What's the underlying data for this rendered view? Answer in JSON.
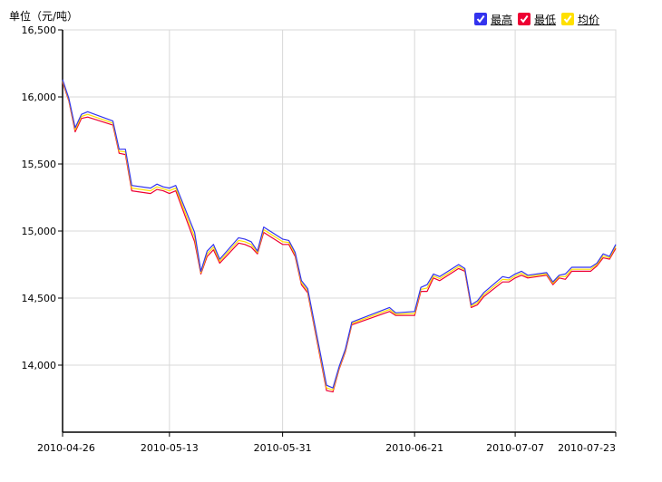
{
  "unit_label": "单位（元/吨）",
  "legend": [
    {
      "label": "最高",
      "color": "#3333ee",
      "checked": true
    },
    {
      "label": "最低",
      "color": "#ee0033",
      "checked": true
    },
    {
      "label": "均价",
      "color": "#ffe000",
      "checked": true
    }
  ],
  "chart_data": {
    "type": "line",
    "ylim": [
      13500,
      16500
    ],
    "yticks": [
      14000,
      14500,
      15000,
      15500,
      16000,
      16500
    ],
    "ytick_labels": [
      "14,000",
      "14,500",
      "15,000",
      "15,500",
      "16,000",
      "16,500"
    ],
    "xlim": [
      "2010-04-26",
      "2010-07-23"
    ],
    "xticks": [
      "2010-04-26",
      "2010-05-13",
      "2010-05-31",
      "2010-06-21",
      "2010-07-07",
      "2010-07-23"
    ],
    "grid": true,
    "dates": [
      "2010-04-26",
      "2010-04-27",
      "2010-04-28",
      "2010-04-29",
      "2010-04-30",
      "2010-05-04",
      "2010-05-05",
      "2010-05-06",
      "2010-05-07",
      "2010-05-10",
      "2010-05-11",
      "2010-05-12",
      "2010-05-13",
      "2010-05-14",
      "2010-05-17",
      "2010-05-18",
      "2010-05-19",
      "2010-05-20",
      "2010-05-21",
      "2010-05-24",
      "2010-05-25",
      "2010-05-26",
      "2010-05-27",
      "2010-05-28",
      "2010-05-31",
      "2010-06-01",
      "2010-06-02",
      "2010-06-03",
      "2010-06-04",
      "2010-06-07",
      "2010-06-08",
      "2010-06-09",
      "2010-06-10",
      "2010-06-11",
      "2010-06-17",
      "2010-06-18",
      "2010-06-21",
      "2010-06-22",
      "2010-06-23",
      "2010-06-24",
      "2010-06-25",
      "2010-06-28",
      "2010-06-29",
      "2010-06-30",
      "2010-07-01",
      "2010-07-02",
      "2010-07-05",
      "2010-07-06",
      "2010-07-07",
      "2010-07-08",
      "2010-07-09",
      "2010-07-12",
      "2010-07-13",
      "2010-07-14",
      "2010-07-15",
      "2010-07-16",
      "2010-07-19",
      "2010-07-20",
      "2010-07-21",
      "2010-07-22",
      "2010-07-23"
    ],
    "series": [
      {
        "name": "最高",
        "color": "#3333ee",
        "values": [
          16130,
          15990,
          15770,
          15870,
          15890,
          15820,
          15610,
          15610,
          15340,
          15320,
          15350,
          15330,
          15320,
          15340,
          14990,
          14700,
          14850,
          14900,
          14790,
          14950,
          14940,
          14920,
          14850,
          15030,
          14940,
          14930,
          14840,
          14630,
          14570,
          13850,
          13830,
          13990,
          14120,
          14320,
          14430,
          14390,
          14400,
          14580,
          14600,
          14680,
          14660,
          14750,
          14720,
          14450,
          14480,
          14540,
          14660,
          14650,
          14680,
          14700,
          14670,
          14690,
          14620,
          14670,
          14680,
          14730,
          14730,
          14760,
          14830,
          14810,
          14900
        ]
      },
      {
        "name": "最低",
        "color": "#ee0033",
        "values": [
          16110,
          15970,
          15740,
          15840,
          15850,
          15790,
          15580,
          15570,
          15300,
          15280,
          15310,
          15300,
          15280,
          15300,
          14920,
          14680,
          14810,
          14860,
          14760,
          14910,
          14900,
          14880,
          14830,
          14990,
          14900,
          14900,
          14810,
          14600,
          14540,
          13810,
          13800,
          13970,
          14100,
          14300,
          14400,
          14370,
          14370,
          14550,
          14550,
          14650,
          14630,
          14720,
          14700,
          14430,
          14450,
          14510,
          14620,
          14620,
          14650,
          14670,
          14650,
          14670,
          14600,
          14650,
          14640,
          14700,
          14700,
          14740,
          14800,
          14790,
          14870
        ]
      },
      {
        "name": "均价",
        "color": "#ffe000",
        "values": [
          16120,
          15980,
          15755,
          15855,
          15870,
          15805,
          15595,
          15590,
          15320,
          15300,
          15330,
          15315,
          15300,
          15320,
          14955,
          14690,
          14830,
          14880,
          14775,
          14930,
          14920,
          14900,
          14840,
          15010,
          14920,
          14915,
          14825,
          14615,
          14555,
          13830,
          13815,
          13980,
          14110,
          14310,
          14415,
          14380,
          14385,
          14565,
          14575,
          14665,
          14645,
          14735,
          14710,
          14440,
          14465,
          14525,
          14640,
          14635,
          14665,
          14685,
          14660,
          14680,
          14610,
          14660,
          14660,
          14715,
          14715,
          14750,
          14815,
          14800,
          14885
        ]
      }
    ]
  }
}
